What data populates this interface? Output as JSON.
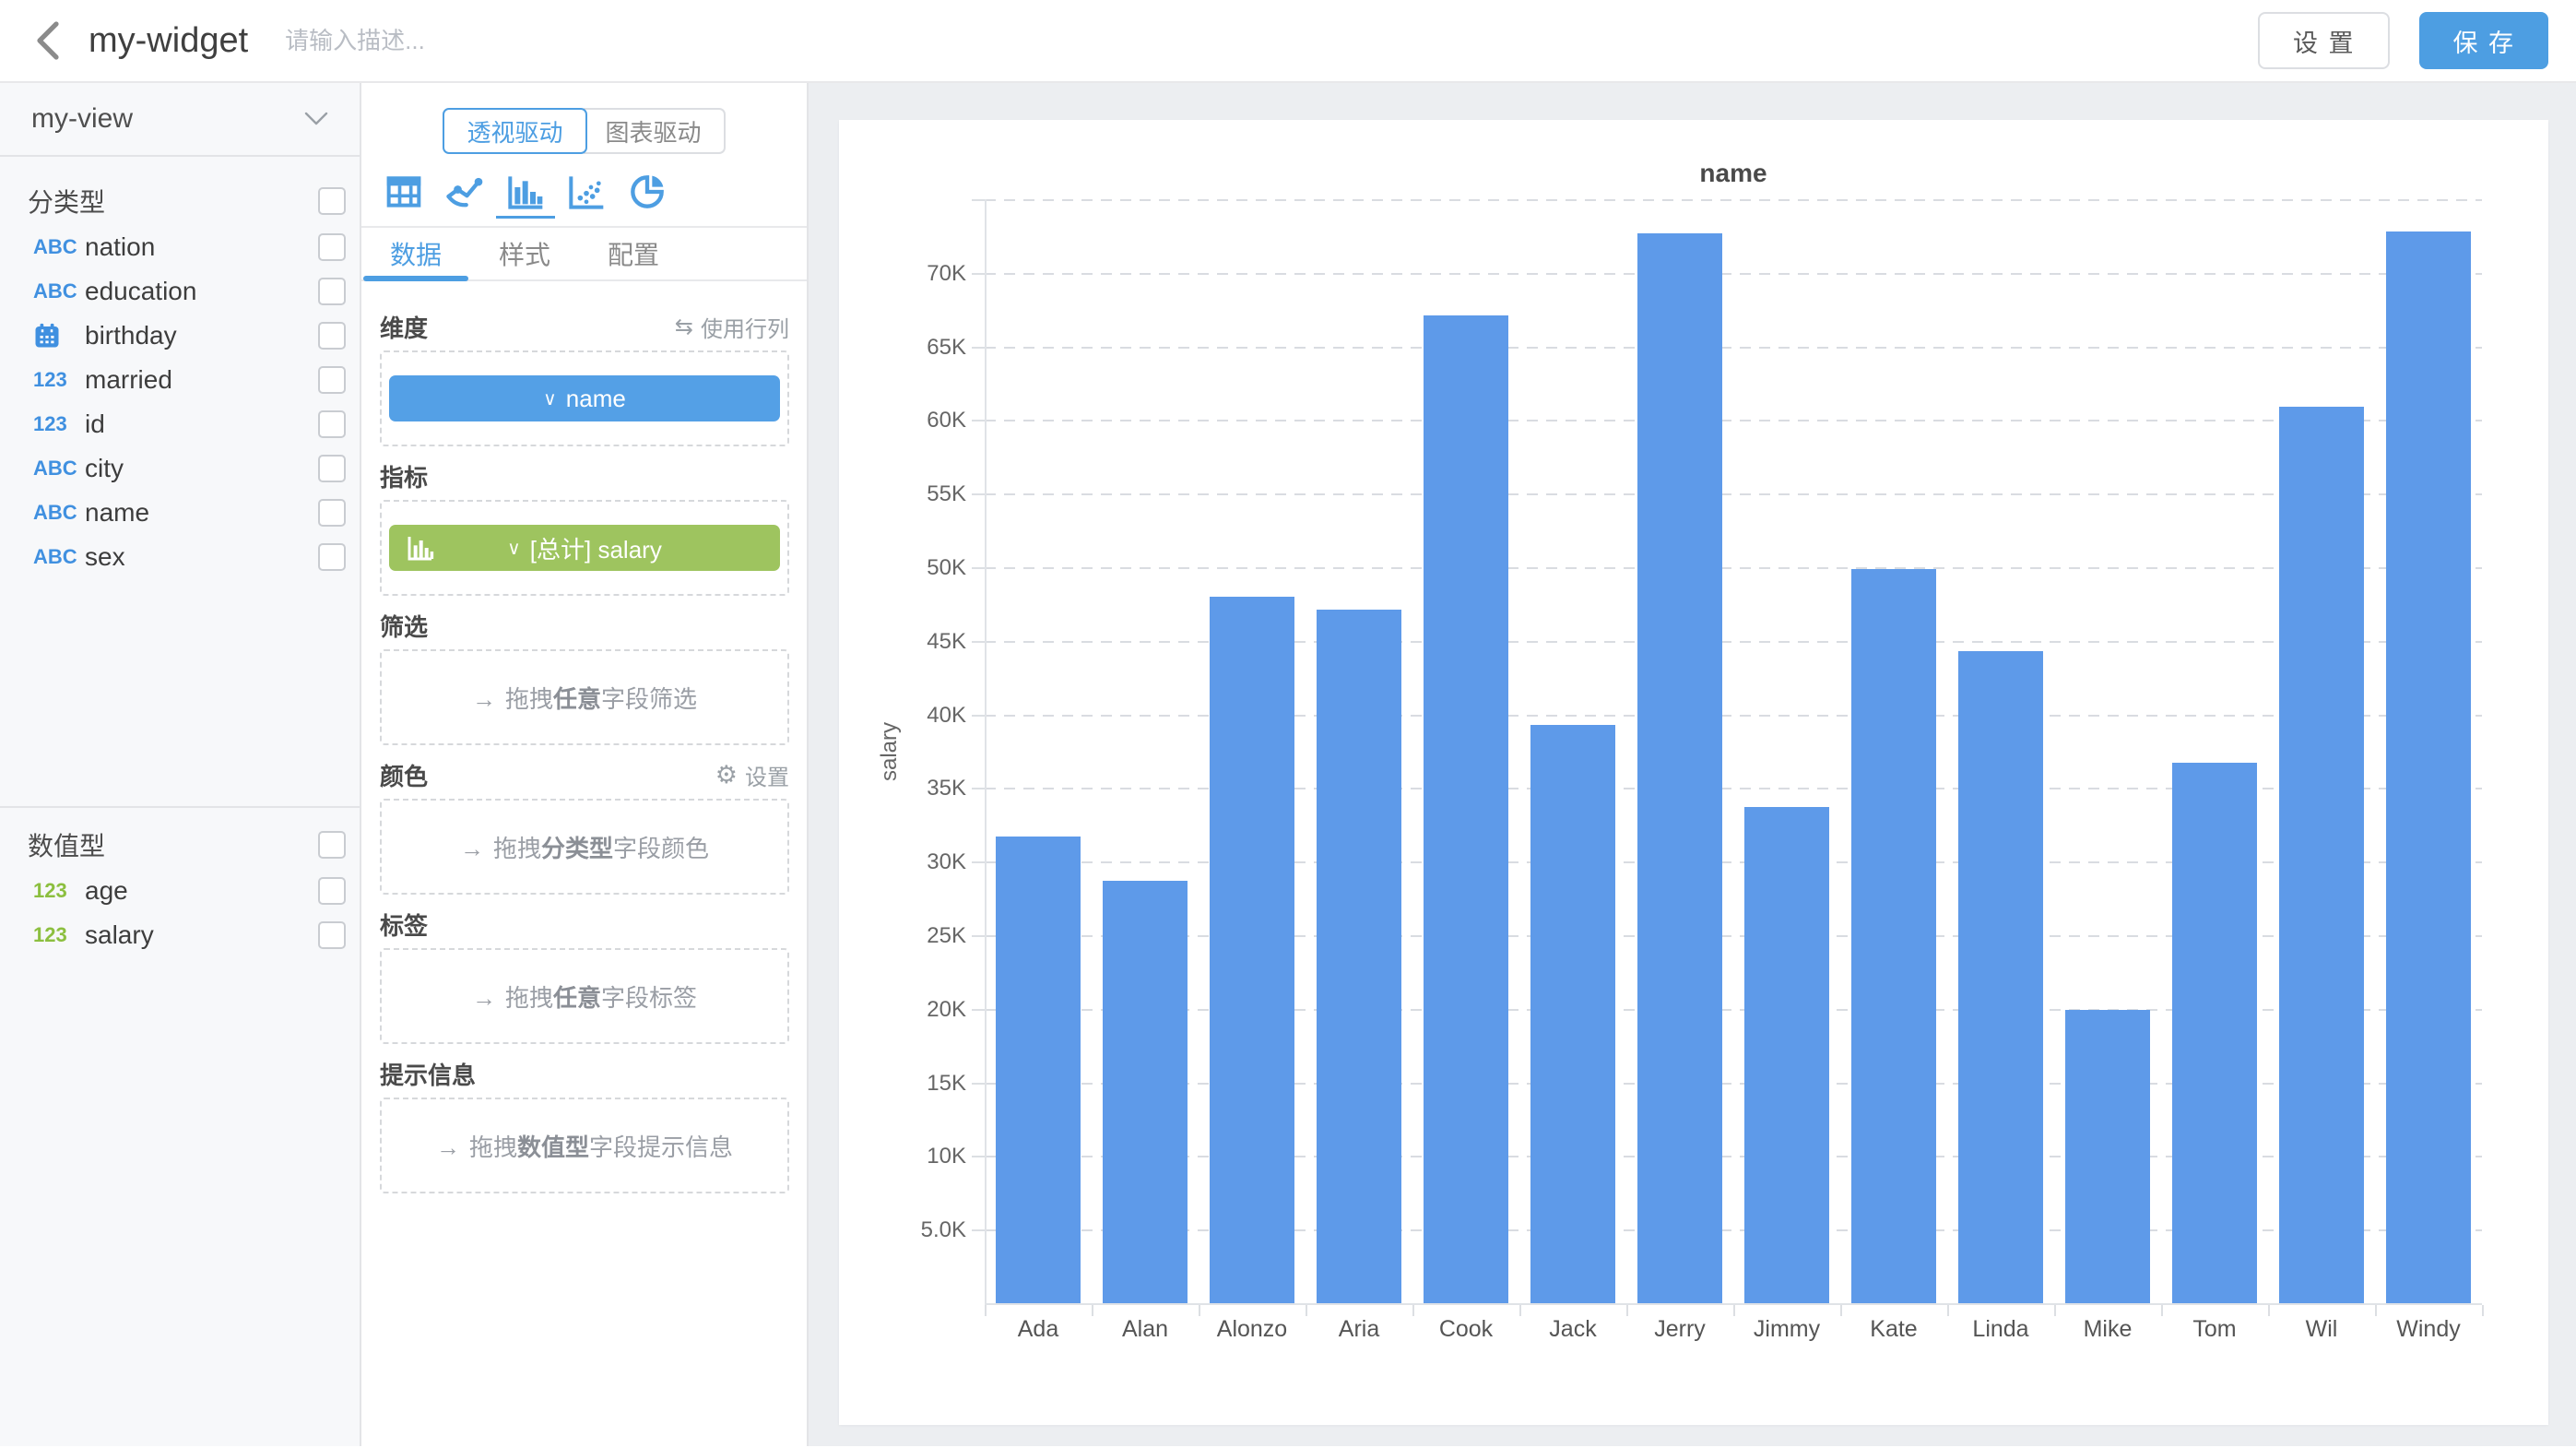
{
  "colors": {
    "accent": "#4d9ee2",
    "bar": "#5e9ae9",
    "metric_green": "#9ec45f",
    "field_blue": "#4090e0",
    "field_green": "#8cbf3f"
  },
  "header": {
    "title": "my-widget",
    "description_placeholder": "请输入描述...",
    "settings_label": "设 置",
    "save_label": "保 存"
  },
  "sidebar": {
    "view_name": "my-view",
    "categorical_label": "分类型",
    "categorical_fields": [
      {
        "type": "abc",
        "name": "nation"
      },
      {
        "type": "abc",
        "name": "education"
      },
      {
        "type": "calendar",
        "name": "birthday"
      },
      {
        "type": "num",
        "name": "married"
      },
      {
        "type": "num",
        "name": "id"
      },
      {
        "type": "abc",
        "name": "city"
      },
      {
        "type": "abc",
        "name": "name"
      },
      {
        "type": "abc",
        "name": "sex"
      }
    ],
    "numeric_label": "数值型",
    "numeric_fields": [
      {
        "type": "num",
        "name": "age"
      },
      {
        "type": "num",
        "name": "salary"
      }
    ],
    "type_icon_text": {
      "abc": "ABC",
      "num": "123"
    }
  },
  "panel": {
    "mode_tabs": {
      "pivot": "透视驱动",
      "chart": "图表驱动"
    },
    "tabs": {
      "data": "数据",
      "style": "样式",
      "config": "配置"
    },
    "dimension": {
      "label": "维度",
      "action": "使用行列",
      "pill": "name"
    },
    "metric": {
      "label": "指标",
      "pill": "[总计] salary"
    },
    "filter": {
      "label": "筛选",
      "hint_prefix": "拖拽",
      "hint_strong": "任意",
      "hint_suffix": "字段筛选"
    },
    "color": {
      "label": "颜色",
      "action": "设置",
      "hint_prefix": "拖拽",
      "hint_strong": "分类型",
      "hint_suffix": "字段颜色"
    },
    "tag": {
      "label": "标签",
      "hint_prefix": "拖拽",
      "hint_strong": "任意",
      "hint_suffix": "字段标签"
    },
    "tooltip": {
      "label": "提示信息",
      "hint_prefix": "拖拽",
      "hint_strong": "数值型",
      "hint_suffix": "字段提示信息"
    }
  },
  "chart_data": {
    "type": "bar",
    "title": "name",
    "xlabel": "",
    "ylabel": "salary",
    "categories": [
      "Ada",
      "Alan",
      "Alonzo",
      "Aria",
      "Cook",
      "Jack",
      "Jerry",
      "Jimmy",
      "Kate",
      "Linda",
      "Mike",
      "Tom",
      "Wil",
      "Windy"
    ],
    "values": [
      31700,
      28700,
      48000,
      47100,
      67100,
      39300,
      72700,
      33700,
      49900,
      44300,
      19900,
      36700,
      60900,
      72800
    ],
    "ylim": [
      0,
      75000
    ],
    "ytick_step": 5000,
    "ytick_labels": [
      "5.0K",
      "10K",
      "15K",
      "20K",
      "25K",
      "30K",
      "35K",
      "40K",
      "45K",
      "50K",
      "55K",
      "60K",
      "65K",
      "70K"
    ],
    "grid": "horizontal-dashed",
    "legend": "none"
  }
}
